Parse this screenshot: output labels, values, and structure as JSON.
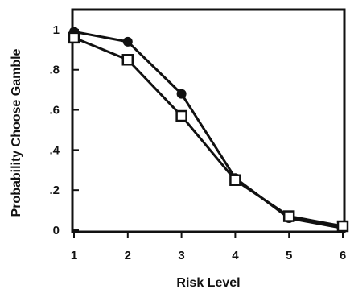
{
  "chart_data": {
    "type": "line",
    "title": "",
    "xlabel": "Risk Level",
    "ylabel": "Probability Choose Gamble",
    "x": [
      1,
      2,
      3,
      4,
      5,
      6
    ],
    "xlim": [
      1,
      6
    ],
    "ylim": [
      0,
      1.1
    ],
    "xticks": [
      1,
      2,
      3,
      4,
      5,
      6
    ],
    "xtick_labels": [
      "1",
      "2",
      "3",
      "4",
      "5",
      "6"
    ],
    "yticks": [
      0,
      0.2,
      0.4,
      0.6,
      0.8,
      1
    ],
    "ytick_labels": [
      "0",
      ".2",
      ".4",
      ".6",
      ".8",
      "1"
    ],
    "grid": false,
    "legend": "none",
    "series": [
      {
        "marker": "filled-circle",
        "color": "#111111",
        "values": [
          0.99,
          0.94,
          0.68,
          0.26,
          0.06,
          0.01
        ]
      },
      {
        "marker": "open-square",
        "color": "#111111",
        "values": [
          0.96,
          0.85,
          0.57,
          0.25,
          0.07,
          0.02
        ]
      }
    ]
  }
}
